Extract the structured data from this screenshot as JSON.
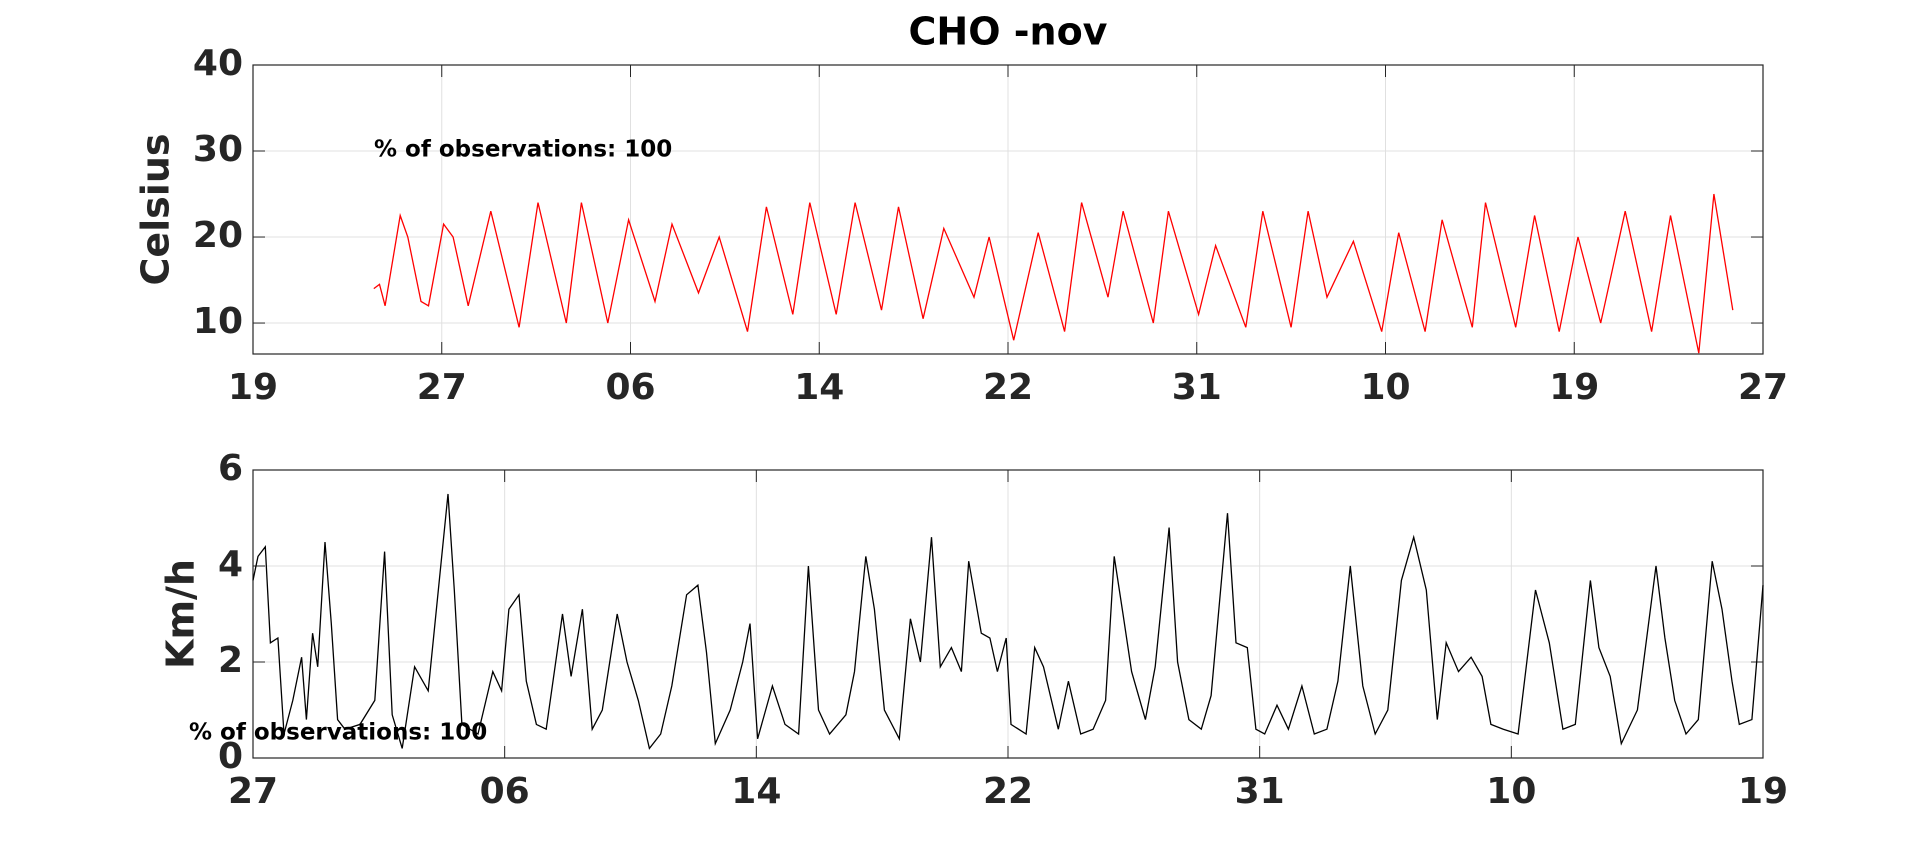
{
  "chart_data": [
    {
      "type": "line",
      "title": "CHO -nov",
      "ylabel": "Celsius",
      "annotation": "% of observations: 100",
      "color": "#ff0000",
      "grid": true,
      "xlim": [
        0,
        8
      ],
      "xticks": [
        {
          "value": 0,
          "label": "19"
        },
        {
          "value": 1,
          "label": "27"
        },
        {
          "value": 2,
          "label": "06"
        },
        {
          "value": 3,
          "label": "14"
        },
        {
          "value": 4,
          "label": "22"
        },
        {
          "value": 5,
          "label": "31"
        },
        {
          "value": 6,
          "label": "10"
        },
        {
          "value": 7,
          "label": "19"
        },
        {
          "value": 8,
          "label": "27"
        }
      ],
      "ylim": [
        6.4,
        40
      ],
      "yticks": [
        10,
        20,
        30,
        40
      ],
      "x": [
        0.64,
        0.67,
        0.7,
        0.78,
        0.82,
        0.89,
        0.93,
        1.01,
        1.06,
        1.14,
        1.26,
        1.41,
        1.51,
        1.66,
        1.74,
        1.88,
        1.99,
        2.13,
        2.22,
        2.36,
        2.47,
        2.62,
        2.72,
        2.86,
        2.95,
        3.09,
        3.19,
        3.33,
        3.42,
        3.55,
        3.66,
        3.82,
        3.9,
        4.03,
        4.16,
        4.3,
        4.39,
        4.53,
        4.61,
        4.77,
        4.85,
        5.01,
        5.1,
        5.26,
        5.35,
        5.5,
        5.59,
        5.69,
        5.83,
        5.98,
        6.07,
        6.21,
        6.3,
        6.46,
        6.53,
        6.69,
        6.79,
        6.92,
        7.02,
        7.14,
        7.27,
        7.41,
        7.51,
        7.66,
        7.74,
        7.84
      ],
      "values": [
        14,
        14.5,
        12,
        22.5,
        20,
        12.5,
        12,
        21.5,
        20,
        12,
        23,
        9.5,
        24,
        10,
        24,
        10,
        22,
        12.5,
        21.5,
        13.5,
        20,
        9,
        23.5,
        11,
        24,
        11,
        24,
        11.5,
        23.5,
        10.5,
        21,
        13,
        20,
        8,
        20.5,
        9,
        24,
        13,
        23,
        10,
        23,
        11,
        19,
        9.5,
        23,
        9.5,
        23,
        13,
        19.5,
        9,
        20.5,
        9,
        22,
        9.5,
        24,
        9.5,
        22.5,
        9,
        20,
        10,
        23,
        9,
        22.5,
        6.5,
        25,
        11.5
      ]
    },
    {
      "type": "line",
      "ylabel": "Km/h",
      "annotation": "% of observations: 100",
      "color": "#000000",
      "grid": true,
      "xlim": [
        0,
        6
      ],
      "xticks": [
        {
          "value": 0,
          "label": "27"
        },
        {
          "value": 1,
          "label": "06"
        },
        {
          "value": 2,
          "label": "14"
        },
        {
          "value": 3,
          "label": "22"
        },
        {
          "value": 4,
          "label": "31"
        },
        {
          "value": 5,
          "label": "10"
        },
        {
          "value": 6,
          "label": "19"
        }
      ],
      "ylim": [
        0,
        6
      ],
      "yticks": [
        0,
        2,
        4,
        6
      ],
      "x": [
        0,
        0.02,
        0.049,
        0.069,
        0.099,
        0.123,
        0.158,
        0.193,
        0.212,
        0.237,
        0.257,
        0.286,
        0.311,
        0.336,
        0.365,
        0.425,
        0.484,
        0.523,
        0.553,
        0.593,
        0.642,
        0.696,
        0.775,
        0.8,
        0.83,
        0.894,
        0.953,
        0.988,
        1.017,
        1.057,
        1.086,
        1.126,
        1.165,
        1.23,
        1.264,
        1.309,
        1.348,
        1.388,
        1.447,
        1.486,
        1.531,
        1.575,
        1.62,
        1.664,
        1.723,
        1.768,
        1.802,
        1.837,
        1.896,
        1.946,
        1.975,
        2.005,
        2.064,
        2.114,
        2.168,
        2.207,
        2.247,
        2.291,
        2.356,
        2.39,
        2.435,
        2.469,
        2.509,
        2.568,
        2.612,
        2.652,
        2.696,
        2.731,
        2.775,
        2.815,
        2.844,
        2.894,
        2.928,
        2.958,
        2.993,
        3.012,
        3.072,
        3.106,
        3.141,
        3.2,
        3.24,
        3.289,
        3.338,
        3.388,
        3.422,
        3.457,
        3.491,
        3.546,
        3.585,
        3.64,
        3.674,
        3.719,
        3.768,
        3.807,
        3.872,
        3.906,
        3.951,
        3.985,
        4.02,
        4.069,
        4.114,
        4.168,
        4.217,
        4.267,
        4.311,
        4.36,
        4.41,
        4.459,
        4.509,
        4.563,
        4.612,
        4.662,
        4.706,
        4.741,
        4.79,
        4.84,
        4.884,
        4.919,
        4.968,
        5.027,
        5.096,
        5.151,
        5.205,
        5.254,
        5.314,
        5.348,
        5.393,
        5.437,
        5.501,
        5.575,
        5.61,
        5.649,
        5.694,
        5.743,
        5.798,
        5.837,
        5.877,
        5.906,
        5.956,
        6.0
      ],
      "values": [
        3.7,
        4.2,
        4.4,
        2.4,
        2.5,
        0.5,
        1.2,
        2.1,
        0.8,
        2.6,
        1.9,
        4.5,
        2.8,
        0.8,
        0.6,
        0.7,
        1.2,
        4.3,
        0.9,
        0.2,
        1.9,
        1.4,
        5.5,
        3.5,
        0.7,
        0.5,
        1.8,
        1.4,
        3.1,
        3.4,
        1.6,
        0.7,
        0.6,
        3.0,
        1.7,
        3.1,
        0.6,
        1.0,
        3.0,
        2.0,
        1.2,
        0.2,
        0.5,
        1.5,
        3.4,
        3.6,
        2.2,
        0.3,
        1.0,
        2.0,
        2.8,
        0.4,
        1.5,
        0.7,
        0.5,
        4.0,
        1.0,
        0.5,
        0.9,
        1.8,
        4.2,
        3.1,
        1.0,
        0.4,
        2.9,
        2.0,
        4.6,
        1.9,
        2.3,
        1.8,
        4.1,
        2.6,
        2.5,
        1.8,
        2.5,
        0.7,
        0.5,
        2.3,
        1.9,
        0.6,
        1.6,
        0.5,
        0.6,
        1.2,
        4.2,
        3.0,
        1.8,
        0.8,
        1.9,
        4.8,
        2.0,
        0.8,
        0.6,
        1.3,
        5.1,
        2.4,
        2.3,
        0.6,
        0.5,
        1.1,
        0.6,
        1.5,
        0.5,
        0.6,
        1.6,
        4.0,
        1.5,
        0.5,
        1.0,
        3.7,
        4.6,
        3.5,
        0.8,
        2.4,
        1.8,
        2.1,
        1.7,
        0.7,
        0.6,
        0.5,
        3.5,
        2.4,
        0.6,
        0.7,
        3.7,
        2.3,
        1.7,
        0.3,
        1.0,
        4.0,
        2.5,
        1.2,
        0.5,
        0.8,
        4.1,
        3.1,
        1.6,
        0.7,
        0.8,
        3.6
      ]
    }
  ]
}
